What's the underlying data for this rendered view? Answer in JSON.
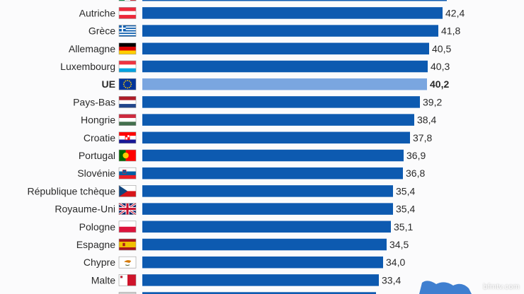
{
  "chart_data": {
    "type": "bar",
    "orientation": "horizontal",
    "title": "",
    "xlabel": "",
    "ylabel": "",
    "xlim": [
      0,
      45
    ],
    "grid": false,
    "legend": "none",
    "highlight": "UE",
    "categories": [
      "",
      "Autriche",
      "Grèce",
      "Allemagne",
      "Luxembourg",
      "UE",
      "Pays-Bas",
      "Hongrie",
      "Croatie",
      "Portugal",
      "Slovénie",
      "République tchèque",
      "Royaume-Uni",
      "Pologne",
      "Espagne",
      "Chypre",
      "Malte",
      ""
    ],
    "values": [
      43.0,
      42.4,
      41.8,
      40.5,
      40.3,
      40.2,
      39.2,
      38.4,
      37.8,
      36.9,
      36.8,
      35.4,
      35.4,
      35.1,
      34.5,
      34.0,
      33.4,
      33.0
    ],
    "value_labels": [
      "",
      "42,4",
      "41,8",
      "40,5",
      "40,3",
      "40,2",
      "39,2",
      "38,4",
      "37,8",
      "36,9",
      "36,8",
      "35,4",
      "35,4",
      "35,1",
      "34,5",
      "34,0",
      "33,4",
      ""
    ],
    "flags": [
      "italy-flag",
      "austria-flag",
      "greece-flag",
      "germany-flag",
      "luxembourg-flag",
      "eu-flag",
      "netherlands-flag",
      "hungary-flag",
      "croatia-flag",
      "portugal-flag",
      "slovenia-flag",
      "czech-republic-flag",
      "united-kingdom-flag",
      "poland-flag",
      "spain-flag",
      "cyprus-flag",
      "malta-flag",
      "unknown-flag"
    ],
    "colors": {
      "bar": "#0d5ab0",
      "bar_highlight": "#7aa6e0",
      "text": "#2a2a2a"
    }
  },
  "watermark": "bfmtv.com"
}
